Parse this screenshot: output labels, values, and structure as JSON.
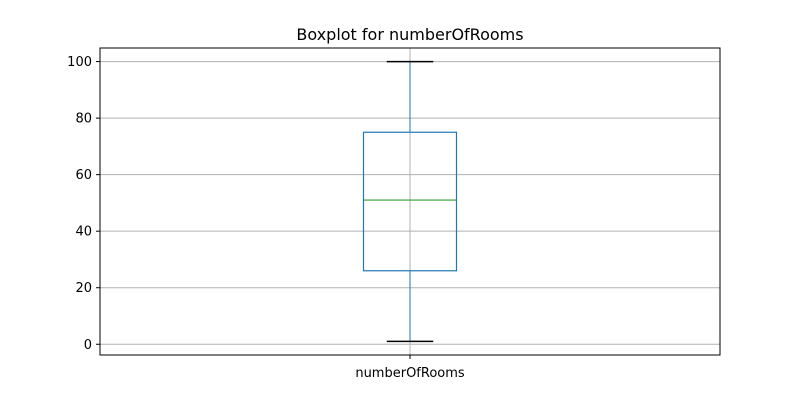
{
  "chart_data": {
    "type": "box",
    "title": "Boxplot for numberOfRooms",
    "xlabel": "",
    "ylabel": "",
    "ylim": [
      -3.8,
      104.8
    ],
    "yticks": [
      0,
      20,
      40,
      60,
      80,
      100
    ],
    "grid": true,
    "categories": [
      "numberOfRooms"
    ],
    "boxes": [
      {
        "min": 1,
        "q1": 26,
        "median": 51,
        "q3": 75,
        "max": 100
      }
    ],
    "colors": {
      "box": "#1f77b4",
      "median": "#2ca02c",
      "whisker": "#000000",
      "grid": "#b0b0b0"
    }
  }
}
